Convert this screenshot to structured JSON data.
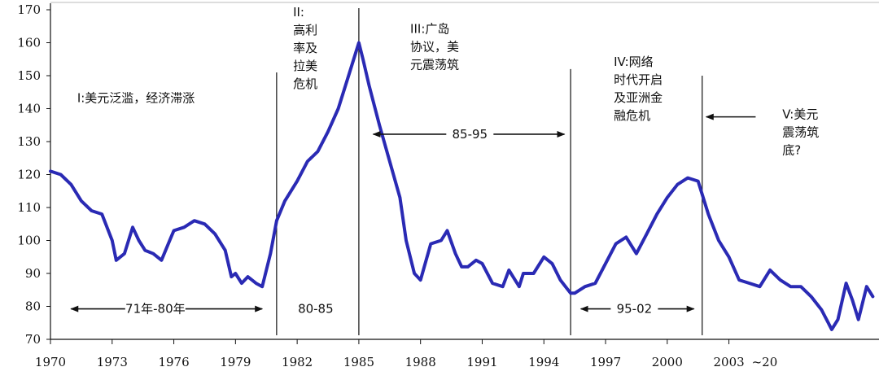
{
  "chart_data": {
    "type": "line",
    "title": "",
    "xlabel": "",
    "ylabel": "",
    "ylim": [
      70,
      170
    ],
    "xlim": [
      1970,
      2010.3
    ],
    "grid": false,
    "line_color": "#2a2ab4",
    "y_ticks": [
      70,
      80,
      90,
      100,
      110,
      120,
      130,
      140,
      150,
      160,
      170
    ],
    "x_ticks": [
      {
        "value": 1970,
        "label": "1970"
      },
      {
        "value": 1973,
        "label": "1973"
      },
      {
        "value": 1976,
        "label": "1976"
      },
      {
        "value": 1979,
        "label": "1979"
      },
      {
        "value": 1982,
        "label": "1982"
      },
      {
        "value": 1985,
        "label": "1985"
      },
      {
        "value": 1988,
        "label": "1988"
      },
      {
        "value": 1991,
        "label": "1991"
      },
      {
        "value": 1994,
        "label": "1994"
      },
      {
        "value": 1997,
        "label": "1997"
      },
      {
        "value": 2000,
        "label": "2000"
      },
      {
        "value": 2003,
        "label": "2003"
      }
    ],
    "x_tick_suffix": "~20",
    "series": [
      {
        "x": [
          1970,
          1970.5,
          1971,
          1971.5,
          1972,
          1972.5,
          1973,
          1973.2,
          1973.6,
          1974,
          1974.3,
          1974.6,
          1975,
          1975.4,
          1975.8,
          1976,
          1976.5,
          1977,
          1977.5,
          1978,
          1978.5,
          1978.8,
          1979,
          1979.3,
          1979.6,
          1980,
          1980.3,
          1980.7,
          1981,
          1981.4,
          1982,
          1982.5,
          1983,
          1983.5,
          1984,
          1984.5,
          1985,
          1985.2,
          1985.5,
          1986,
          1986.5,
          1987,
          1987.3,
          1987.7,
          1988,
          1988.5,
          1989,
          1989.3,
          1989.7,
          1990,
          1990.3,
          1990.7,
          1991,
          1991.5,
          1992,
          1992.3,
          1992.8,
          1993,
          1993.5,
          1994,
          1994.4,
          1994.8,
          1995.3,
          1995.5,
          1996,
          1996.5,
          1997,
          1997.5,
          1998,
          1998.5,
          1999,
          1999.5,
          2000,
          2000.5,
          2001,
          2001.5,
          2002,
          2002.5,
          2003,
          2003.5,
          2004,
          2004.5,
          2005,
          2005.5,
          2006,
          2006.5,
          2007,
          2007.5,
          2008,
          2008.3,
          2008.7,
          2009,
          2009.3,
          2009.7,
          2010
        ],
        "values": [
          121,
          120,
          117,
          112,
          109,
          108,
          100,
          94,
          96,
          104,
          100,
          97,
          96,
          94,
          100,
          103,
          104,
          106,
          105,
          102,
          97,
          89,
          90,
          87,
          89,
          87,
          86,
          96,
          106,
          112,
          118,
          124,
          127,
          133,
          140,
          150,
          160,
          155,
          147,
          135,
          124,
          113,
          100,
          90,
          88,
          99,
          100,
          103,
          96,
          92,
          92,
          94,
          93,
          87,
          86,
          91,
          86,
          90,
          90,
          95,
          93,
          88,
          84,
          84,
          86,
          87,
          93,
          99,
          101,
          96,
          102,
          108,
          113,
          117,
          119,
          118,
          108,
          100,
          95,
          88,
          87,
          86,
          91,
          88,
          86,
          86,
          83,
          79,
          73,
          76,
          87,
          82,
          76,
          86,
          83
        ]
      }
    ],
    "period_dividers": [
      1981.0,
      1985.0,
      1995.3,
      2001.7
    ],
    "period_labels": [
      {
        "text": "71年-80年",
        "x": 1975.1,
        "y": 78,
        "arrows": [
          1971.0,
          1980.3
        ]
      },
      {
        "text": "80-85",
        "x": 1982.9,
        "y": 78,
        "arrows": []
      },
      {
        "text": "85-95",
        "x": 1990.4,
        "y": 131,
        "arrows": [
          1985.7,
          1995.0
        ]
      },
      {
        "text": "95-02",
        "x": 1998.4,
        "y": 78,
        "arrows": [
          1995.8,
          2001.3
        ]
      }
    ],
    "annotations": [
      {
        "lines": [
          "I:美元泛滥，经济滞涨"
        ],
        "x": 1971.3,
        "y": 142
      },
      {
        "lines": [
          "II:",
          "高利",
          "率及",
          "拉美",
          "危机"
        ],
        "x": 1981.8,
        "y": 168
      },
      {
        "lines": [
          "III:广岛",
          "协议，美",
          "元震荡筑"
        ],
        "x": 1987.5,
        "y": 163
      },
      {
        "lines": [
          "IV:网络",
          "时代开启",
          "及亚洲金",
          "融危机"
        ],
        "x": 1997.4,
        "y": 153
      },
      {
        "lines": [
          "V:美元",
          "震荡筑",
          "底?"
        ],
        "x": 2005.6,
        "y": 137
      }
    ],
    "v_arrow": {
      "from": 2004.3,
      "to": 2001.9,
      "y": 137.5
    }
  }
}
